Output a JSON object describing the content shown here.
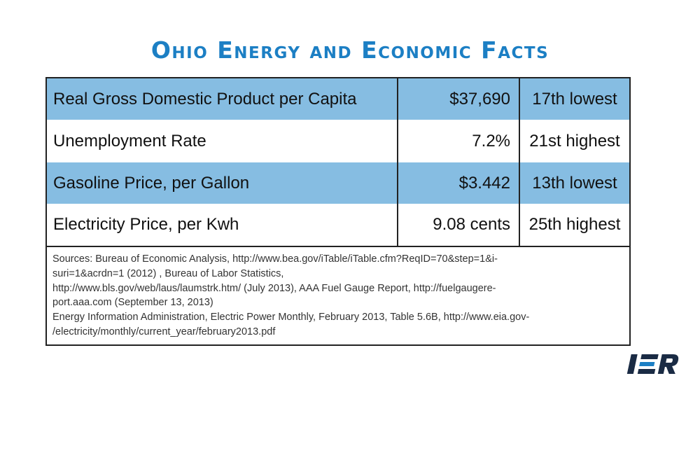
{
  "title": "Ohio Energy and Economic Facts",
  "colors": {
    "title": "#1c7fc4",
    "row_shade": "#86bde2",
    "logo": "#1a2b44",
    "logo_accent": "#1c7fc4"
  },
  "rows": [
    {
      "label": "Real Gross Domestic Product per Capita",
      "value": "$37,690",
      "rank": "17th lowest",
      "shaded": true
    },
    {
      "label": "Unemployment Rate",
      "value": "7.2%",
      "rank": "21st highest",
      "shaded": false
    },
    {
      "label": "Gasoline Price, per Gallon",
      "value": "$3.442",
      "rank": "13th lowest",
      "shaded": true
    },
    {
      "label": "Electricity Price, per Kwh",
      "value": "9.08 cents",
      "rank": "25th highest",
      "shaded": false
    }
  ],
  "sources_lines": [
    "Sources: Bureau of Economic Analysis, http://www.bea.gov/iTable/iTable.cfm?ReqID=70&step=1&i-",
    "suri=1&acrdn=1 (2012) , Bureau of Labor Statistics,",
    "http://www.bls.gov/web/laus/laumstrk.htm/ (July 2013), AAA Fuel Gauge Report, http://fuelgaugere-",
    "port.aaa.com  (September 13, 2013)",
    "Energy Information Administration, Electric Power Monthly, February 2013, Table 5.6B, http://www.eia.gov-",
    "/electricity/monthly/current_year/february2013.pdf"
  ],
  "logo_text": "IER"
}
